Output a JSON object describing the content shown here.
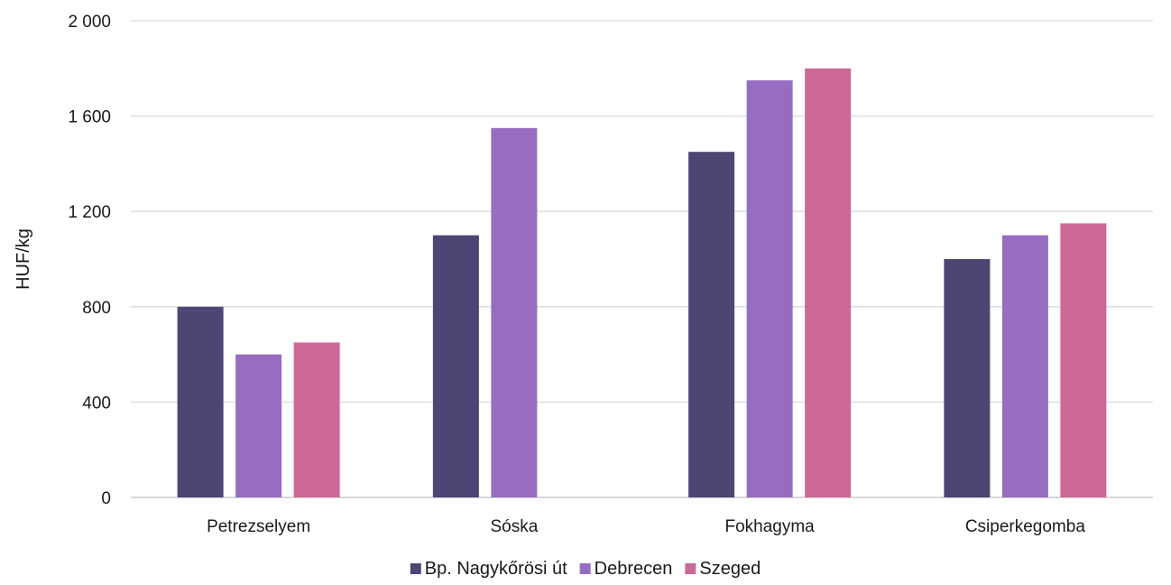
{
  "chart_data": {
    "type": "bar",
    "title": "",
    "xlabel": "",
    "ylabel": "HUF/kg",
    "ylim": [
      0,
      2000
    ],
    "yticks": [
      0,
      400,
      800,
      1200,
      1600,
      2000
    ],
    "ytick_labels": [
      "0",
      "400",
      "800",
      "1 200",
      "1 600",
      "2 000"
    ],
    "categories": [
      "Petrezselyem",
      "Sóska",
      "Fokhagyma",
      "Csiperkegomba"
    ],
    "series": [
      {
        "name": "Bp. Nagykőrösi út",
        "color": "#4e4574",
        "values": [
          800,
          1100,
          1450,
          1000
        ]
      },
      {
        "name": "Debrecen",
        "color": "#976dc2",
        "values": [
          600,
          1550,
          1750,
          1100
        ]
      },
      {
        "name": "Szeged",
        "color": "#cc6998",
        "values": [
          650,
          null,
          1800,
          1150
        ]
      }
    ],
    "grid": true,
    "legend_position": "bottom"
  }
}
